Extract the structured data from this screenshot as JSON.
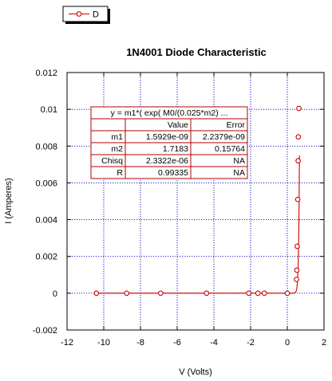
{
  "chart_data": {
    "type": "scatter",
    "title": "1N4001 Diode Characteristic",
    "xlabel": "V (Volts)",
    "ylabel": "I (Amperes)",
    "xlim": [
      -12,
      2
    ],
    "ylim": [
      -0.002,
      0.012
    ],
    "x_ticks": [
      -12,
      -10,
      -8,
      -6,
      -4,
      -2,
      0,
      2
    ],
    "x_tick_labels": [
      "-12",
      "-10",
      "-8",
      "-6",
      "-4",
      "-2",
      "0",
      "2"
    ],
    "y_ticks": [
      -0.002,
      0,
      0.002,
      0.004,
      0.006,
      0.008,
      0.01,
      0.012
    ],
    "y_tick_labels": [
      "-0.002",
      "0",
      "0.002",
      "0.004",
      "0.006",
      "0.008",
      "0.01",
      "0.012"
    ],
    "grid": true,
    "legend_position": "top-left",
    "series": [
      {
        "name": "D",
        "color": "#cc0000",
        "marker": "circle-open",
        "points": [
          {
            "x": -10.4,
            "y": 0
          },
          {
            "x": -8.75,
            "y": 0
          },
          {
            "x": -6.9,
            "y": 0
          },
          {
            "x": -4.4,
            "y": 0
          },
          {
            "x": -2.1,
            "y": 0
          },
          {
            "x": -1.6,
            "y": 0
          },
          {
            "x": -1.25,
            "y": 0
          },
          {
            "x": 0,
            "y": 0
          },
          {
            "x": 0.5,
            "y": 0.00075
          },
          {
            "x": 0.52,
            "y": 0.00125
          },
          {
            "x": 0.54,
            "y": 0.00255
          },
          {
            "x": 0.57,
            "y": 0.0051
          },
          {
            "x": 0.59,
            "y": 0.0072
          },
          {
            "x": 0.6,
            "y": 0.0085
          },
          {
            "x": 0.63,
            "y": 0.01005
          }
        ]
      }
    ],
    "fit_table": {
      "equation": "y = m1*( exp( M0/(0.025*m2) ...",
      "headers": [
        "",
        "Value",
        "Error"
      ],
      "rows": [
        [
          "m1",
          "1.5929e-09",
          "2.2379e-09"
        ],
        [
          "m2",
          "1.7183",
          "0.15764"
        ],
        [
          "Chisq",
          "2.3322e-06",
          "NA"
        ],
        [
          "R",
          "0.99335",
          "NA"
        ]
      ]
    }
  }
}
